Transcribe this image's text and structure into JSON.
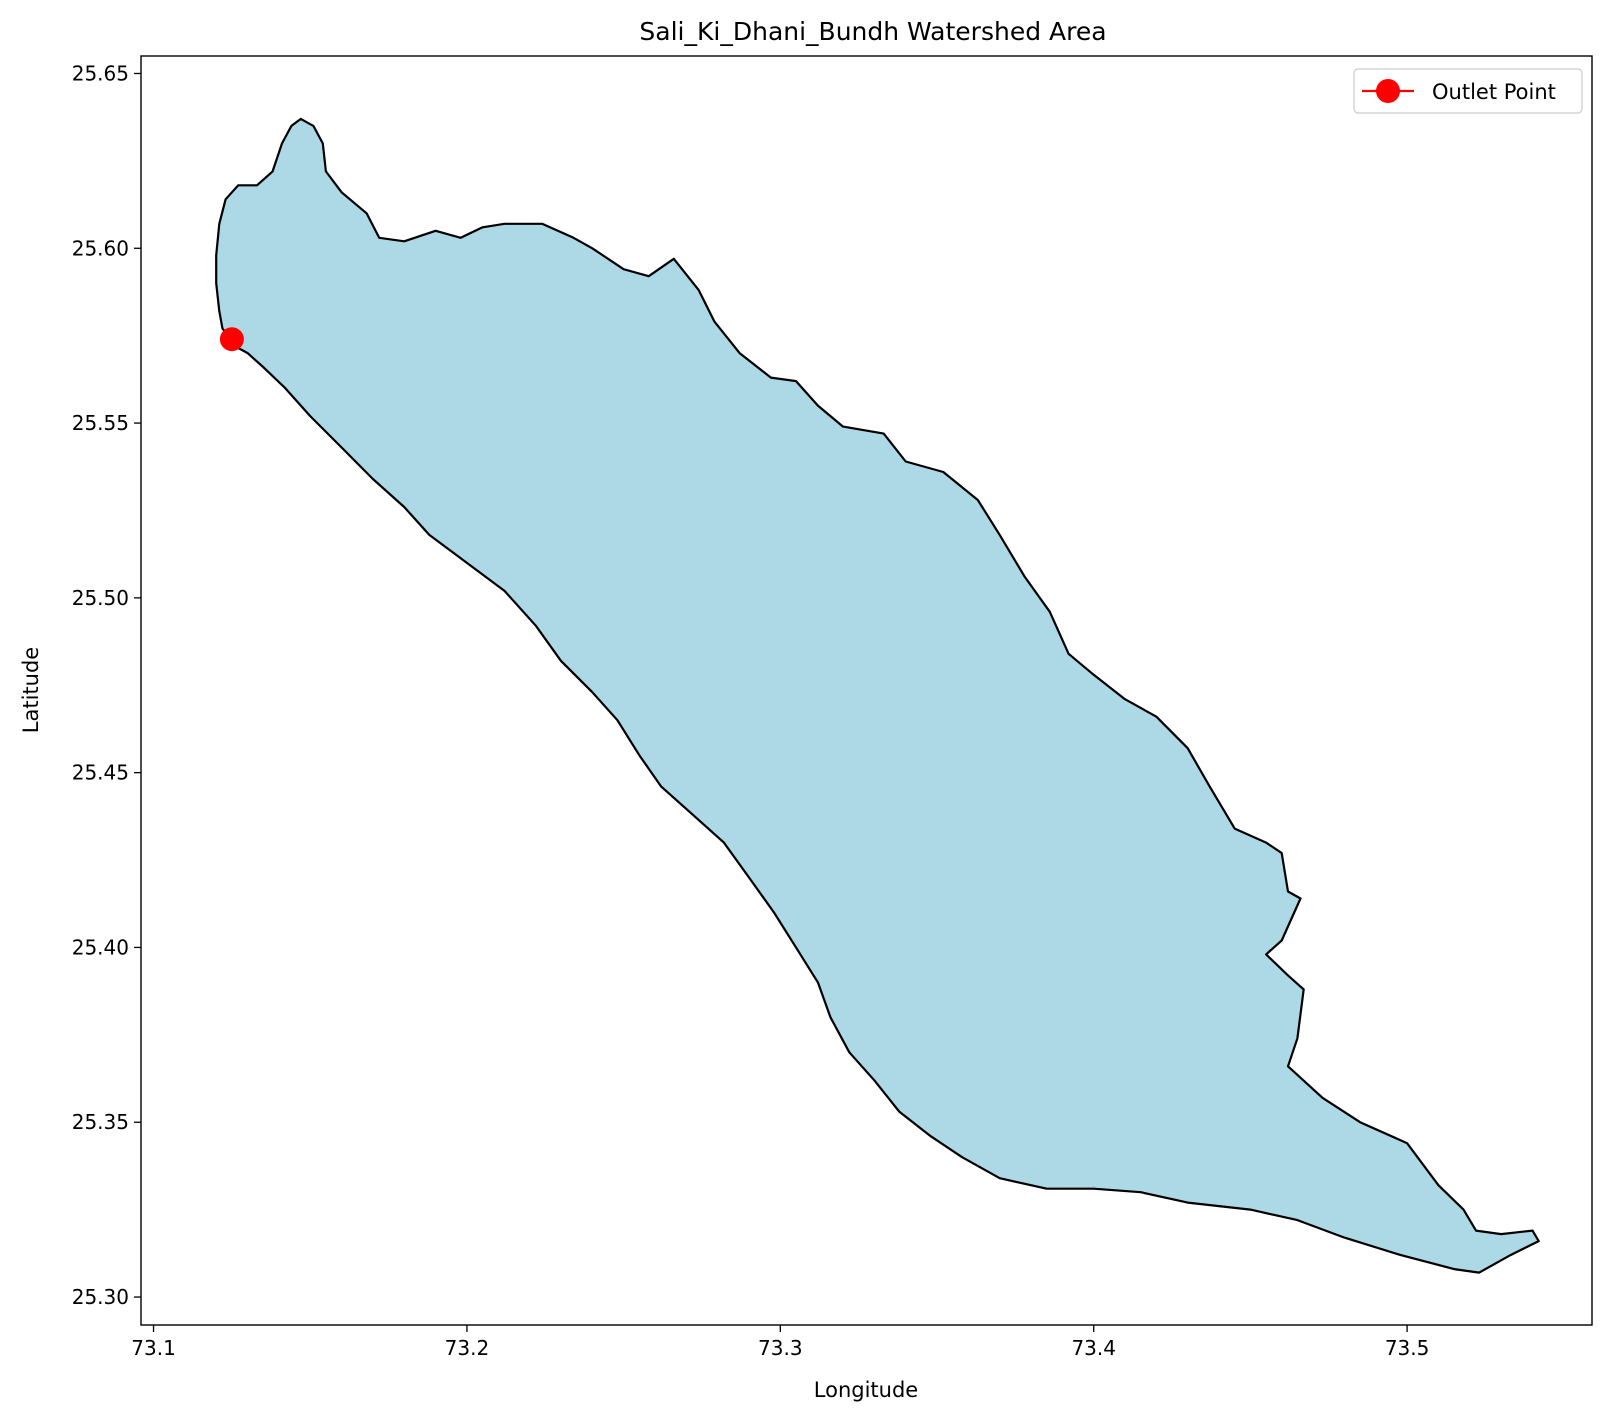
{
  "chart_data": {
    "type": "map",
    "title": "Sali_Ki_Dhani_Bundh Watershed Area",
    "xlabel": "Longitude",
    "ylabel": "Latitude",
    "xlim": [
      73.096,
      73.559
    ],
    "ylim": [
      25.292,
      25.655
    ],
    "xticks": [
      73.1,
      73.2,
      73.3,
      73.4,
      73.5
    ],
    "xtick_labels": [
      "73.1",
      "73.2",
      "73.3",
      "73.4",
      "73.5"
    ],
    "yticks": [
      25.3,
      25.35,
      25.4,
      25.45,
      25.5,
      25.55,
      25.6,
      25.65
    ],
    "ytick_labels": [
      "25.30",
      "25.35",
      "25.40",
      "25.45",
      "25.50",
      "25.55",
      "25.60",
      "25.65"
    ],
    "grid": false,
    "legend_position": "top-right",
    "watershed": {
      "fill": "#add8e6",
      "edge": "#000000",
      "boundary": [
        [
          73.147,
          25.637
        ],
        [
          73.151,
          25.635
        ],
        [
          73.154,
          25.63
        ],
        [
          73.155,
          25.622
        ],
        [
          73.16,
          25.616
        ],
        [
          73.168,
          25.61
        ],
        [
          73.172,
          25.603
        ],
        [
          73.18,
          25.602
        ],
        [
          73.19,
          25.605
        ],
        [
          73.198,
          25.603
        ],
        [
          73.205,
          25.606
        ],
        [
          73.212,
          25.607
        ],
        [
          73.224,
          25.607
        ],
        [
          73.234,
          25.603
        ],
        [
          73.24,
          25.6
        ],
        [
          73.25,
          25.594
        ],
        [
          73.258,
          25.592
        ],
        [
          73.266,
          25.597
        ],
        [
          73.274,
          25.588
        ],
        [
          73.279,
          25.579
        ],
        [
          73.287,
          25.57
        ],
        [
          73.297,
          25.563
        ],
        [
          73.305,
          25.562
        ],
        [
          73.312,
          25.555
        ],
        [
          73.32,
          25.549
        ],
        [
          73.333,
          25.547
        ],
        [
          73.34,
          25.539
        ],
        [
          73.352,
          25.536
        ],
        [
          73.363,
          25.528
        ],
        [
          73.37,
          25.518
        ],
        [
          73.378,
          25.506
        ],
        [
          73.386,
          25.496
        ],
        [
          73.392,
          25.484
        ],
        [
          73.4,
          25.478
        ],
        [
          73.41,
          25.471
        ],
        [
          73.42,
          25.466
        ],
        [
          73.43,
          25.457
        ],
        [
          73.437,
          25.446
        ],
        [
          73.445,
          25.434
        ],
        [
          73.455,
          25.43
        ],
        [
          73.46,
          25.427
        ],
        [
          73.462,
          25.416
        ],
        [
          73.466,
          25.414
        ],
        [
          73.46,
          25.402
        ],
        [
          73.455,
          25.398
        ],
        [
          73.462,
          25.392
        ],
        [
          73.467,
          25.388
        ],
        [
          73.465,
          25.374
        ],
        [
          73.462,
          25.366
        ],
        [
          73.473,
          25.357
        ],
        [
          73.485,
          25.35
        ],
        [
          73.5,
          25.344
        ],
        [
          73.51,
          25.332
        ],
        [
          73.518,
          25.325
        ],
        [
          73.522,
          25.319
        ],
        [
          73.53,
          25.318
        ],
        [
          73.54,
          25.319
        ],
        [
          73.542,
          25.316
        ],
        [
          73.533,
          25.312
        ],
        [
          73.523,
          25.307
        ],
        [
          73.515,
          25.308
        ],
        [
          73.498,
          25.312
        ],
        [
          73.48,
          25.317
        ],
        [
          73.465,
          25.322
        ],
        [
          73.45,
          25.325
        ],
        [
          73.43,
          25.327
        ],
        [
          73.415,
          25.33
        ],
        [
          73.4,
          25.331
        ],
        [
          73.385,
          25.331
        ],
        [
          73.37,
          25.334
        ],
        [
          73.358,
          25.34
        ],
        [
          73.348,
          25.346
        ],
        [
          73.338,
          25.353
        ],
        [
          73.33,
          25.362
        ],
        [
          73.322,
          25.37
        ],
        [
          73.316,
          25.38
        ],
        [
          73.312,
          25.39
        ],
        [
          73.305,
          25.4
        ],
        [
          73.298,
          25.41
        ],
        [
          73.29,
          25.42
        ],
        [
          73.282,
          25.43
        ],
        [
          73.272,
          25.438
        ],
        [
          73.262,
          25.446
        ],
        [
          73.255,
          25.455
        ],
        [
          73.248,
          25.465
        ],
        [
          73.24,
          25.473
        ],
        [
          73.23,
          25.482
        ],
        [
          73.222,
          25.492
        ],
        [
          73.212,
          25.502
        ],
        [
          73.2,
          25.51
        ],
        [
          73.188,
          25.518
        ],
        [
          73.18,
          25.526
        ],
        [
          73.17,
          25.534
        ],
        [
          73.16,
          25.543
        ],
        [
          73.15,
          25.552
        ],
        [
          73.142,
          25.56
        ],
        [
          73.135,
          25.566
        ],
        [
          73.13,
          25.57
        ],
        [
          73.126,
          25.572
        ],
        [
          73.125,
          25.574
        ],
        [
          73.122,
          25.577
        ],
        [
          73.121,
          25.582
        ],
        [
          73.12,
          25.59
        ],
        [
          73.12,
          25.598
        ],
        [
          73.121,
          25.607
        ],
        [
          73.123,
          25.614
        ],
        [
          73.127,
          25.618
        ],
        [
          73.133,
          25.618
        ],
        [
          73.138,
          25.622
        ],
        [
          73.141,
          25.63
        ],
        [
          73.144,
          25.635
        ]
      ]
    },
    "series": [
      {
        "name": "Outlet Point",
        "type": "scatter",
        "color": "#ff0000",
        "points": [
          [
            73.125,
            25.574
          ]
        ]
      }
    ]
  }
}
